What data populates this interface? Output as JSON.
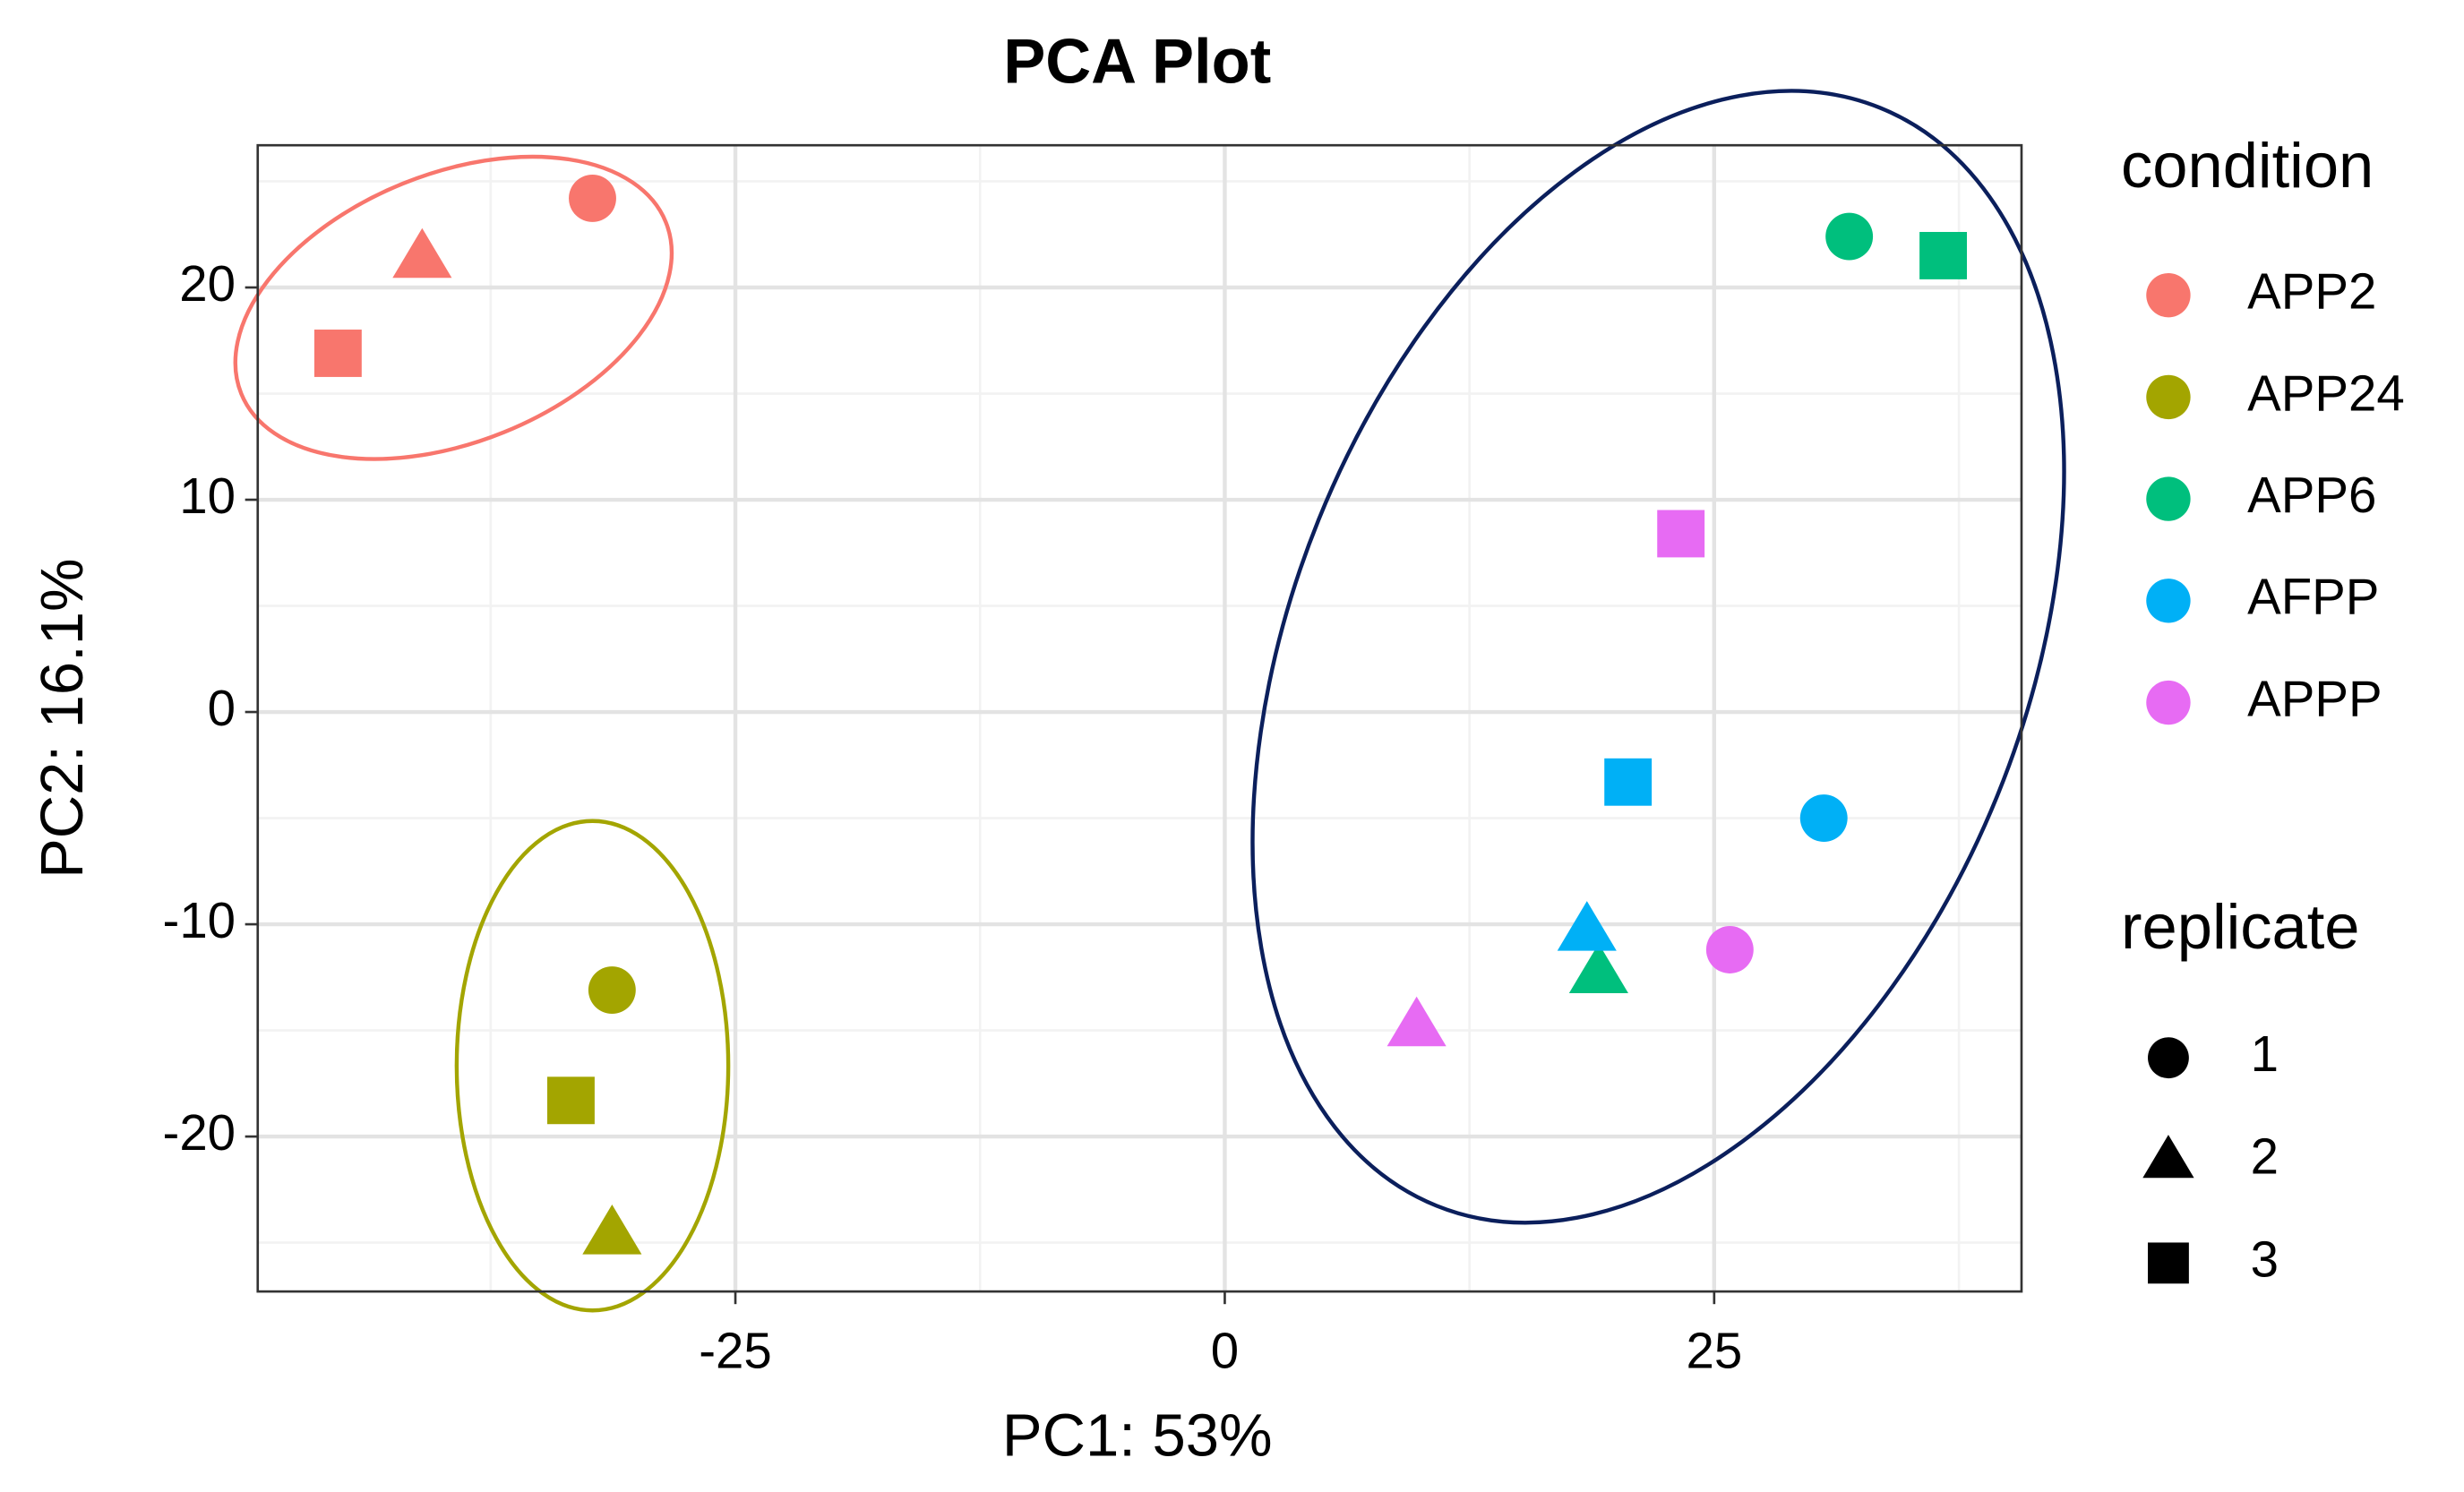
{
  "chart_data": {
    "type": "scatter",
    "title": "PCA Plot",
    "x_label": "PC1: 53%",
    "y_label": "PC2: 16.1%",
    "xlim": [
      -49.4,
      40.7
    ],
    "ylim": [
      -27.3,
      26.7
    ],
    "xticks": [
      -25,
      0,
      25
    ],
    "yticks": [
      -20,
      -10,
      0,
      10,
      20
    ],
    "xminor": [
      -37.5,
      -12.5,
      12.5,
      37.5
    ],
    "yminor": [
      -25,
      -15,
      -5,
      5,
      15,
      25
    ],
    "grid": true,
    "legend_title": "condition",
    "shape_legend": {
      "title": "replicate",
      "labels": [
        "1",
        "2",
        "3"
      ],
      "shapes": [
        "circle",
        "triangle",
        "square"
      ]
    },
    "series": [
      {
        "name": "APP2",
        "color": "#F8766D",
        "x": [
          -32.3,
          -41.0,
          -45.3
        ],
        "values": [
          24.2,
          21.4,
          16.9
        ]
      },
      {
        "name": "APP24",
        "color": "#A3A500",
        "x": [
          -31.3,
          -31.3,
          -33.4
        ],
        "values": [
          -13.1,
          -24.6,
          -18.3
        ]
      },
      {
        "name": "APP6",
        "color": "#00BF7D",
        "x": [
          31.9,
          19.1,
          36.7
        ],
        "values": [
          22.4,
          -12.3,
          21.5
        ]
      },
      {
        "name": "AFPP",
        "color": "#00B0F6",
        "x": [
          30.6,
          18.5,
          20.6
        ],
        "values": [
          -5.0,
          -10.3,
          -3.3
        ]
      },
      {
        "name": "APPP",
        "color": "#E76BF3",
        "x": [
          25.8,
          9.8,
          23.3
        ],
        "values": [
          -11.2,
          -14.8,
          8.4
        ]
      }
    ]
  }
}
